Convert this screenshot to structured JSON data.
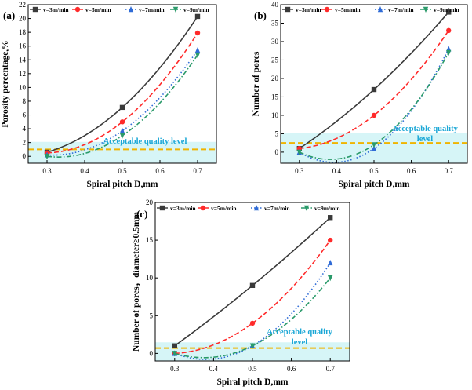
{
  "figure": {
    "palette": {
      "s3": "#3a3a3a",
      "s5": "#ff2a2a",
      "s7": "#2f6bd6",
      "s9": "#2a9a6a",
      "threshold_line": "#f0b400",
      "band": "#d6f5f7",
      "annotation": "#1aa7d6"
    }
  },
  "chart_data": [
    {
      "panel": "(a)",
      "type": "line",
      "xlabel": "Spiral pitch D,mm",
      "ylabel": "Porosity percentage,%",
      "xlim": [
        0.25,
        0.75
      ],
      "ylim": [
        -1,
        22
      ],
      "xticks": [
        "0.3",
        "0.4",
        "0.5",
        "0.6",
        "0.7"
      ],
      "yticks": [
        "0",
        "2",
        "4",
        "6",
        "8",
        "10",
        "12",
        "14",
        "16",
        "18",
        "20",
        "22"
      ],
      "x": [
        0.3,
        0.5,
        0.7
      ],
      "series": [
        {
          "name": "v=3m/min",
          "marker": "square",
          "dash": "solid",
          "values": [
            0.6,
            7.1,
            20.3
          ]
        },
        {
          "name": "v=5m/min",
          "marker": "circle",
          "dash": "dash",
          "values": [
            0.5,
            5.0,
            17.9
          ]
        },
        {
          "name": "v=7m/min",
          "marker": "triangle",
          "dash": "dot",
          "values": [
            0.2,
            3.7,
            15.4
          ]
        },
        {
          "name": "v=9m/min",
          "marker": "triangle-down",
          "dash": "dashdot",
          "values": [
            0.0,
            3.0,
            14.7
          ]
        }
      ],
      "threshold": 1.0,
      "annotation": [
        "Acceptable quality level"
      ]
    },
    {
      "panel": "(b)",
      "type": "line",
      "xlabel": "Spiral pitch D,mm",
      "ylabel": "Number of pores",
      "xlim": [
        0.25,
        0.75
      ],
      "ylim": [
        -3,
        40
      ],
      "xticks": [
        "0.3",
        "0.4",
        "0.5",
        "0.6",
        "0.7"
      ],
      "yticks": [
        "0",
        "5",
        "10",
        "15",
        "20",
        "25",
        "30",
        "35",
        "40"
      ],
      "x": [
        0.3,
        0.5,
        0.7
      ],
      "series": [
        {
          "name": "v=3m/min",
          "marker": "square",
          "dash": "solid",
          "values": [
            1,
            17,
            38
          ]
        },
        {
          "name": "v=5m/min",
          "marker": "circle",
          "dash": "dash",
          "values": [
            1,
            10,
            33
          ]
        },
        {
          "name": "v=7m/min",
          "marker": "triangle",
          "dash": "dot",
          "values": [
            0,
            1,
            28
          ]
        },
        {
          "name": "v=9m/min",
          "marker": "triangle-down",
          "dash": "dashdot",
          "values": [
            0,
            2,
            27
          ]
        }
      ],
      "threshold": 2.5,
      "annotation": [
        "Acceptable quality",
        "level"
      ]
    },
    {
      "panel": "(c)",
      "type": "line",
      "xlabel": "Spiral pitch D,mm",
      "ylabel": "Number of pores，diameter≥0.5mm",
      "xlim": [
        0.25,
        0.75
      ],
      "ylim": [
        -1,
        20
      ],
      "xticks": [
        "0.3",
        "0.4",
        "0.5",
        "0.6",
        "0.7"
      ],
      "yticks": [
        "0",
        "5",
        "10",
        "15",
        "20"
      ],
      "x": [
        0.3,
        0.5,
        0.7
      ],
      "series": [
        {
          "name": "v=3m/min",
          "marker": "square",
          "dash": "solid",
          "values": [
            1,
            9,
            18
          ]
        },
        {
          "name": "v=5m/min",
          "marker": "circle",
          "dash": "dash",
          "values": [
            0,
            4,
            15
          ]
        },
        {
          "name": "v=7m/min",
          "marker": "triangle",
          "dash": "dot",
          "values": [
            0,
            1,
            12
          ]
        },
        {
          "name": "v=9m/min",
          "marker": "triangle-down",
          "dash": "dashdot",
          "values": [
            0,
            1,
            10
          ]
        }
      ],
      "threshold": 0.7,
      "annotation": [
        "Acceptable quality",
        "level"
      ]
    }
  ]
}
